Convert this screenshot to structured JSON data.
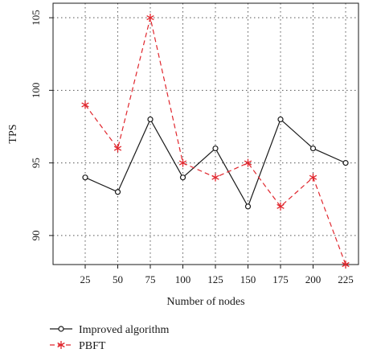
{
  "chart_data": {
    "type": "line",
    "xlabel": "Number of nodes",
    "ylabel": "TPS",
    "categories": [
      "25",
      "50",
      "75",
      "100",
      "125",
      "150",
      "175",
      "200",
      "225"
    ],
    "ylim": [
      88,
      106
    ],
    "yticks": [
      90,
      95,
      100,
      105
    ],
    "grid": true,
    "legend_position": "bottom-left",
    "series": [
      {
        "name": "Improved algorithm",
        "color": "#1a1a1a",
        "marker": "circle",
        "line_style": "solid",
        "values": [
          94,
          93,
          98,
          94,
          96,
          92,
          98,
          96,
          95
        ]
      },
      {
        "name": "PBFT",
        "color": "#e0262d",
        "marker": "asterisk",
        "line_style": "dashed",
        "values": [
          99,
          96,
          105,
          95,
          94,
          95,
          92,
          94,
          88
        ]
      }
    ]
  }
}
